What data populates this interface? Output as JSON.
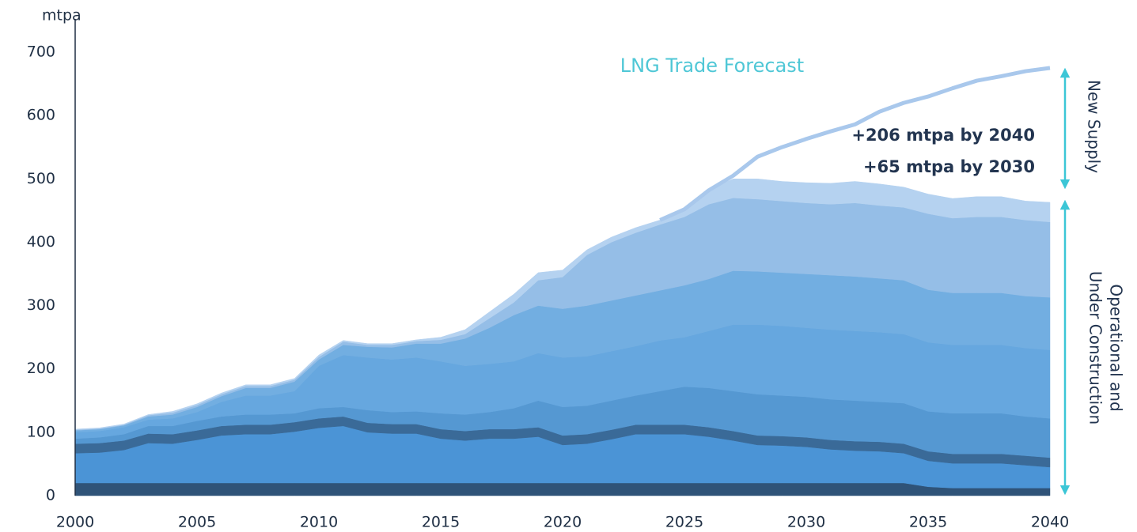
{
  "chart_data": {
    "type": "area",
    "y_label": "mtpa",
    "x": [
      2000,
      2001,
      2002,
      2003,
      2004,
      2005,
      2006,
      2007,
      2008,
      2009,
      2010,
      2011,
      2012,
      2013,
      2014,
      2015,
      2016,
      2017,
      2018,
      2019,
      2020,
      2021,
      2022,
      2023,
      2024,
      2025,
      2026,
      2027,
      2028,
      2029,
      2030,
      2031,
      2032,
      2033,
      2034,
      2035,
      2036,
      2037,
      2038,
      2039,
      2040
    ],
    "xlim": [
      2000,
      2040
    ],
    "xticks": [
      2000,
      2005,
      2010,
      2015,
      2020,
      2025,
      2030,
      2035,
      2040
    ],
    "ylim": [
      0,
      700
    ],
    "yticks": [
      0,
      100,
      200,
      300,
      400,
      500,
      600,
      700
    ],
    "grid": false,
    "stacked": true,
    "series": [
      {
        "color": "#2f5378",
        "values": [
          20,
          20,
          20,
          20,
          20,
          20,
          20,
          20,
          20,
          20,
          20,
          20,
          20,
          20,
          20,
          20,
          20,
          20,
          20,
          20,
          20,
          20,
          20,
          20,
          20,
          20,
          20,
          20,
          20,
          20,
          20,
          20,
          20,
          20,
          20,
          14,
          12,
          12,
          12,
          12,
          12
        ]
      },
      {
        "color": "#4b94d6",
        "values": [
          47,
          48,
          52,
          63,
          62,
          68,
          75,
          77,
          77,
          81,
          87,
          90,
          80,
          78,
          78,
          70,
          67,
          70,
          70,
          73,
          60,
          62,
          69,
          77,
          77,
          77,
          73,
          67,
          60,
          59,
          57,
          53,
          51,
          50,
          47,
          41,
          39,
          39,
          39,
          36,
          33
        ]
      },
      {
        "color": "#3a6a98",
        "values": [
          15,
          15,
          15,
          15,
          15,
          15,
          15,
          15,
          15,
          15,
          15,
          15,
          15,
          15,
          15,
          15,
          15,
          15,
          15,
          15,
          15,
          15,
          15,
          15,
          15,
          15,
          15,
          15,
          15,
          15,
          15,
          15,
          15,
          15,
          15,
          15,
          15,
          15,
          15,
          15,
          15
        ]
      },
      {
        "color": "#5598d2",
        "values": [
          8,
          9,
          10,
          12,
          13,
          15,
          15,
          16,
          16,
          14,
          16,
          15,
          20,
          19,
          20,
          25,
          26,
          27,
          33,
          42,
          45,
          45,
          46,
          46,
          53,
          60,
          62,
          63,
          65,
          64,
          64,
          64,
          64,
          63,
          64,
          63,
          64,
          64,
          64,
          62,
          62
        ]
      },
      {
        "color": "#66a7df",
        "values": [
          10,
          10,
          11,
          10,
          12,
          14,
          23,
          30,
          30,
          35,
          67,
          82,
          83,
          83,
          85,
          82,
          77,
          76,
          74,
          75,
          78,
          78,
          78,
          78,
          80,
          78,
          90,
          105,
          110,
          110,
          109,
          110,
          110,
          110,
          109,
          109,
          108,
          108,
          108,
          108,
          108
        ]
      },
      {
        "color": "#72aee1",
        "values": [
          3,
          3,
          3,
          5,
          6,
          8,
          9,
          12,
          12,
          15,
          10,
          16,
          17,
          19,
          22,
          28,
          43,
          57,
          73,
          75,
          77,
          80,
          80,
          80,
          79,
          82,
          82,
          85,
          84,
          84,
          85,
          86,
          86,
          85,
          85,
          83,
          82,
          82,
          82,
          82,
          83
        ]
      },
      {
        "color": "#95bee7",
        "values": [
          1,
          1,
          1,
          2,
          3,
          3,
          3,
          3,
          3,
          3,
          4,
          5,
          3,
          4,
          4,
          6,
          7,
          15,
          20,
          40,
          50,
          80,
          92,
          99,
          104,
          108,
          118,
          115,
          114,
          113,
          112,
          112,
          116,
          115,
          115,
          120,
          118,
          120,
          120,
          120,
          119
        ]
      },
      {
        "color": "#b5d2f0",
        "values": [
          1,
          1,
          1,
          1,
          2,
          2,
          2,
          2,
          2,
          2,
          3,
          2,
          2,
          2,
          2,
          4,
          7,
          10,
          13,
          12,
          11,
          8,
          8,
          8,
          7,
          10,
          22,
          30,
          32,
          31,
          32,
          33,
          34,
          34,
          32,
          31,
          31,
          32,
          32,
          30,
          31
        ]
      },
      {
        "name": "LNG Trade Forecast",
        "type": "line",
        "color": "#a9c8ec",
        "label_color": "#4fc7d6",
        "values": [
          null,
          null,
          null,
          null,
          null,
          null,
          null,
          null,
          null,
          null,
          null,
          null,
          null,
          null,
          null,
          null,
          null,
          null,
          null,
          null,
          null,
          null,
          null,
          null,
          435,
          452,
          482,
          505,
          535,
          550,
          563,
          575,
          586,
          606,
          620,
          630,
          643,
          655,
          662,
          670,
          675
        ]
      }
    ],
    "annotations": [
      "+206 mtpa by 2040",
      "+65 mtpa by 2030",
      "New Supply",
      "Operational and",
      "Under Construction"
    ]
  }
}
